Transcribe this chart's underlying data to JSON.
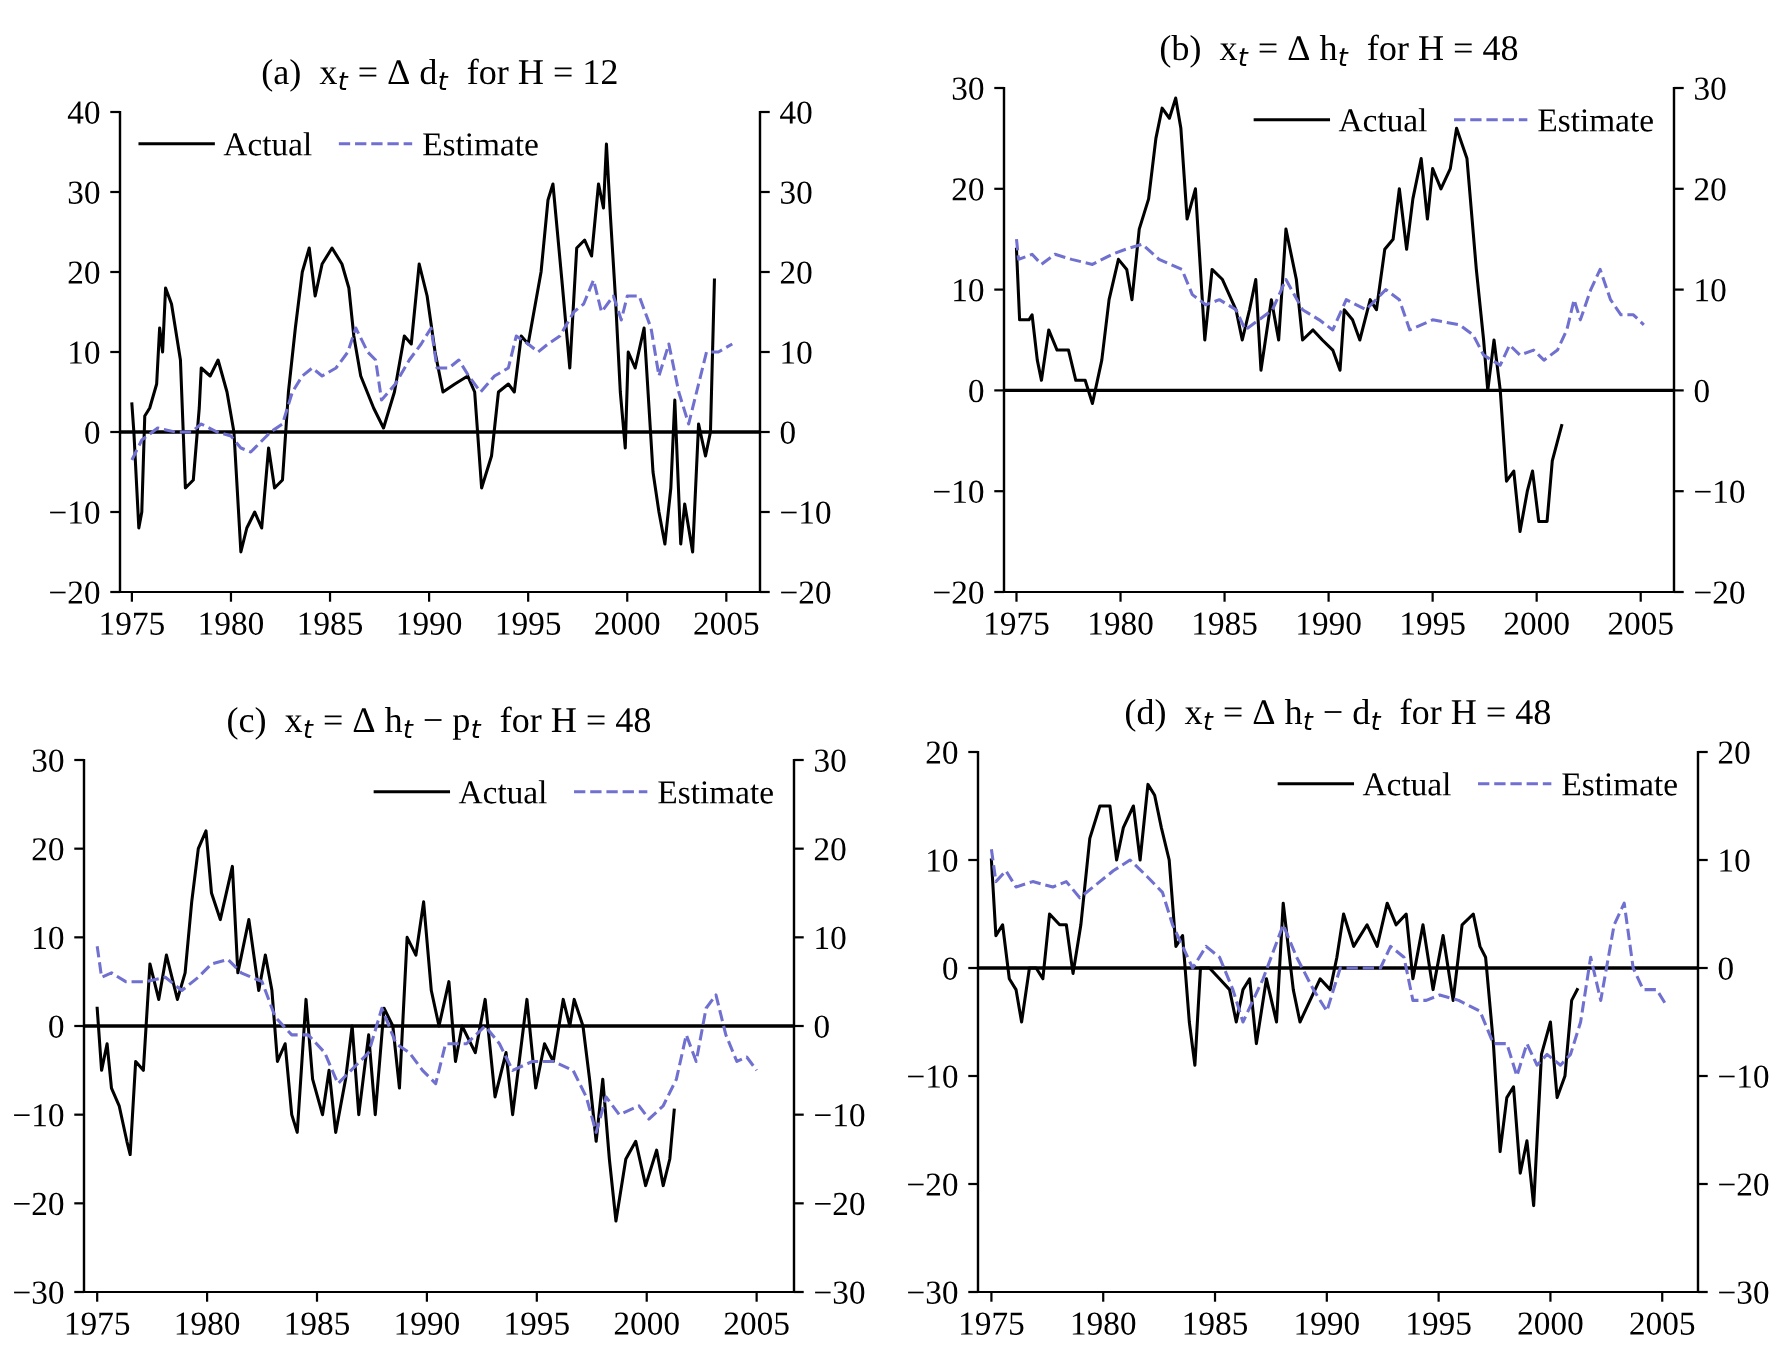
{
  "chart_data": [
    {
      "type": "line",
      "title": "(a)  x$_{t}$ = Δ d$_{t}$  for H = 12",
      "legend": "top left",
      "xlim": [
        1974.4,
        2006.7
      ],
      "xticks": [
        1975,
        1980,
        1985,
        1990,
        1995,
        2000,
        2005
      ],
      "ylim": [
        -20,
        40
      ],
      "yticks": [
        -20,
        -10,
        0,
        10,
        20,
        30,
        40
      ],
      "y2lim": [
        -20,
        40
      ],
      "y2ticks": [
        -20,
        -10,
        0,
        10,
        20,
        30,
        40
      ],
      "ref_lines": [
        {
          "axis": "y",
          "value": 0,
          "color": "#000000"
        }
      ],
      "series": [
        {
          "name": "Actual",
          "color": "#000000",
          "line_style": "solid",
          "x": [
            1975.0,
            1975.1,
            1975.35,
            1975.5,
            1975.65,
            1975.9,
            1976.25,
            1976.4,
            1976.55,
            1976.7,
            1977.0,
            1977.45,
            1977.7,
            1978.1,
            1978.4,
            1978.5,
            1978.95,
            1979.35,
            1979.8,
            1980.15,
            1980.5,
            1980.8,
            1981.2,
            1981.55,
            1981.9,
            1982.2,
            1982.6,
            1982.9,
            1983.25,
            1983.6,
            1983.95,
            1984.25,
            1984.6,
            1985.1,
            1985.6,
            1985.95,
            1986.2,
            1986.55,
            1987.2,
            1987.7,
            1988.25,
            1988.75,
            1989.1,
            1989.5,
            1989.9,
            1990.3,
            1990.7,
            1991.3,
            1991.95,
            1992.3,
            1992.65,
            1993.15,
            1993.5,
            1994.0,
            1994.3,
            1994.65,
            1995.0,
            1995.65,
            1996.0,
            1996.25,
            1996.7,
            1997.1,
            1997.45,
            1997.85,
            1998.2,
            1998.55,
            1998.8,
            1998.95,
            1999.15,
            1999.4,
            1999.65,
            1999.9,
            2000.05,
            2000.4,
            2000.85,
            2001.3,
            2001.6,
            2001.9,
            2002.2,
            2002.4,
            2002.7,
            2002.9,
            2003.3,
            2003.6,
            2003.95,
            2004.2,
            2004.4
          ],
          "values": [
            3.5,
            0,
            -12,
            -10,
            2,
            3,
            6,
            13,
            10,
            18,
            16,
            9,
            -7,
            -6,
            3,
            8,
            7,
            9,
            5,
            0,
            -15,
            -12,
            -10,
            -12,
            -2,
            -7,
            -6,
            5,
            13,
            20,
            23,
            17,
            21,
            23,
            21,
            18,
            12,
            7,
            3,
            0.5,
            5,
            12,
            11,
            21,
            17,
            10,
            5,
            6,
            7,
            5,
            -7,
            -3,
            5,
            6,
            5,
            12,
            11,
            20,
            29,
            31,
            19,
            8,
            23,
            24,
            22,
            31,
            28,
            36,
            27,
            17,
            5,
            -2,
            10,
            8,
            13,
            -5,
            -10,
            -14,
            -7,
            4,
            -14,
            -9,
            -15,
            1,
            -3,
            0,
            19
          ]
        },
        {
          "name": "Estimate",
          "color": "#7070d0",
          "line_style": "dashed",
          "x": [
            1975.0,
            1975.5,
            1976.3,
            1977.2,
            1978.0,
            1978.5,
            1979.3,
            1980.0,
            1980.5,
            1981.0,
            1982.0,
            1982.6,
            1983.1,
            1983.6,
            1984.1,
            1984.6,
            1985.3,
            1985.9,
            1986.3,
            1986.9,
            1987.3,
            1987.6,
            1988.3,
            1989.0,
            1989.6,
            1990.1,
            1990.4,
            1991.0,
            1991.5,
            1992.0,
            1992.6,
            1993.3,
            1994.0,
            1994.4,
            1995.0,
            1995.5,
            1996.0,
            1996.6,
            1997.3,
            1997.8,
            1998.3,
            1998.7,
            1999.3,
            1999.7,
            2000.0,
            2000.6,
            2001.2,
            2001.6,
            2002.1,
            2002.6,
            2003.1,
            2003.6,
            2004.0,
            2004.6,
            2005.3
          ],
          "values": [
            -3.5,
            -1,
            0.5,
            0,
            0,
            1,
            0,
            -0.5,
            -2,
            -2.5,
            0,
            1,
            5,
            7,
            8,
            7,
            8,
            10,
            13,
            10,
            9,
            4,
            6,
            9,
            11,
            13,
            8,
            8,
            9,
            7,
            5,
            7,
            8,
            12,
            11,
            10,
            11,
            12,
            15,
            16,
            19,
            15,
            17,
            14,
            17,
            17,
            13,
            7,
            11,
            5,
            1,
            6,
            10,
            10,
            11
          ]
        }
      ]
    },
    {
      "type": "line",
      "title": "(b)  x$_{t}$ = Δ h$_{t}$  for H = 48",
      "legend": "top right",
      "xlim": [
        1974.4,
        2006.6
      ],
      "xticks": [
        1975,
        1980,
        1985,
        1990,
        1995,
        2000,
        2005
      ],
      "ylim": [
        -20,
        30
      ],
      "yticks": [
        -20,
        -10,
        0,
        10,
        20,
        30
      ],
      "y2lim": [
        -20,
        30
      ],
      "y2ticks": [
        -20,
        -10,
        0,
        10,
        20,
        30
      ],
      "ref_lines": [
        {
          "axis": "y",
          "value": 0,
          "color": "#000000"
        }
      ],
      "series": [
        {
          "name": "Actual",
          "color": "#000000",
          "line_style": "solid",
          "x": [
            1975.0,
            1975.15,
            1975.6,
            1975.75,
            1976.0,
            1976.2,
            1976.55,
            1976.95,
            1977.5,
            1977.85,
            1978.3,
            1978.65,
            1979.1,
            1979.45,
            1979.9,
            1980.3,
            1980.55,
            1980.9,
            1981.35,
            1981.7,
            1982.0,
            1982.35,
            1982.65,
            1982.9,
            1983.2,
            1983.6,
            1984.05,
            1984.4,
            1984.9,
            1985.55,
            1985.85,
            1986.2,
            1986.5,
            1986.75,
            1987.25,
            1987.6,
            1987.95,
            1988.45,
            1988.75,
            1989.25,
            1989.7,
            1990.2,
            1990.55,
            1990.75,
            1991.15,
            1991.5,
            1992.0,
            1992.3,
            1992.7,
            1993.1,
            1993.4,
            1993.75,
            1994.05,
            1994.45,
            1994.75,
            1995.0,
            1995.4,
            1995.85,
            1996.15,
            1996.65,
            1997.1,
            1997.45,
            1997.65,
            1997.95,
            1998.25,
            1998.55,
            1998.9,
            1999.2,
            1999.55,
            1999.8,
            2000.1,
            2000.5,
            2000.75,
            2001.2
          ],
          "values": [
            14,
            7,
            7,
            7.5,
            3,
            1,
            6,
            4,
            4,
            1,
            1,
            -1.3,
            3,
            9,
            13,
            12,
            9,
            16,
            19,
            25,
            28,
            27,
            29,
            26,
            17,
            20,
            5,
            12,
            11,
            8,
            5,
            8,
            11,
            2,
            9,
            5,
            16,
            11,
            5,
            6,
            5,
            4,
            2,
            8,
            7,
            5,
            9,
            8,
            14,
            15,
            20,
            14,
            19,
            23,
            17,
            22,
            20,
            22,
            26,
            23,
            12,
            5,
            0,
            5,
            0,
            -9,
            -8,
            -14,
            -10,
            -8,
            -13,
            -13,
            -7,
            -3.5
          ]
        },
        {
          "name": "Estimate",
          "color": "#7070d0",
          "line_style": "dashed",
          "x": [
            1975.0,
            1975.1,
            1975.75,
            1976.2,
            1976.85,
            1977.65,
            1978.65,
            1979.6,
            1980.25,
            1981.05,
            1981.85,
            1982.95,
            1983.45,
            1984.1,
            1984.75,
            1985.55,
            1986.0,
            1986.65,
            1987.3,
            1987.95,
            1988.75,
            1989.55,
            1990.2,
            1990.85,
            1991.8,
            1992.75,
            1993.4,
            1993.9,
            1995.0,
            1996.3,
            1996.95,
            1997.45,
            1998.25,
            1998.7,
            1999.2,
            1999.85,
            2000.35,
            2001.0,
            2001.45,
            2001.8,
            2002.1,
            2002.6,
            2003.05,
            2003.55,
            2004.05,
            2004.65,
            2005.15
          ],
          "values": [
            15,
            13,
            13.5,
            12.5,
            13.5,
            13,
            12.5,
            13.5,
            14,
            14.5,
            13,
            12,
            9.5,
            8.5,
            9,
            8,
            6,
            7,
            8,
            11,
            8,
            7,
            6,
            9,
            8,
            10,
            9,
            6,
            7,
            6.5,
            5.5,
            3.5,
            2.5,
            4.5,
            3.5,
            4,
            3,
            4,
            6,
            9,
            7,
            10,
            12,
            9,
            7.5,
            7.5,
            6.5
          ]
        }
      ]
    },
    {
      "type": "line",
      "title": "(c)  x$_{t}$ = Δ h$_{t}$ − p$_{t}$  for H = 48",
      "legend": "top right",
      "xlim": [
        1974.4,
        2006.7
      ],
      "xticks": [
        1975,
        1980,
        1985,
        1990,
        1995,
        2000,
        2005
      ],
      "ylim": [
        -30,
        30
      ],
      "yticks": [
        -30,
        -20,
        -10,
        0,
        10,
        20,
        30
      ],
      "y2lim": [
        -30,
        30
      ],
      "y2ticks": [
        -30,
        -20,
        -10,
        0,
        10,
        20,
        30
      ],
      "ref_lines": [
        {
          "axis": "y",
          "value": 0,
          "color": "#000000"
        }
      ],
      "series": [
        {
          "name": "Actual",
          "color": "#000000",
          "line_style": "solid",
          "x": [
            1975.0,
            1975.2,
            1975.45,
            1975.65,
            1976.0,
            1976.35,
            1976.5,
            1976.75,
            1977.1,
            1977.4,
            1977.8,
            1978.15,
            1978.65,
            1979.0,
            1979.3,
            1979.6,
            1979.95,
            1980.2,
            1980.6,
            1981.15,
            1981.4,
            1981.9,
            1982.35,
            1982.65,
            1982.95,
            1983.2,
            1983.55,
            1983.85,
            1984.1,
            1984.5,
            1984.8,
            1985.25,
            1985.55,
            1985.85,
            1986.3,
            1986.6,
            1986.9,
            1987.35,
            1987.65,
            1988.05,
            1988.45,
            1988.75,
            1989.1,
            1989.5,
            1989.85,
            1990.2,
            1990.55,
            1991.0,
            1991.3,
            1991.6,
            1992.2,
            1992.65,
            1993.1,
            1993.6,
            1993.9,
            1994.55,
            1994.95,
            1995.35,
            1995.75,
            1996.2,
            1996.5,
            1996.7,
            1997.1,
            1997.4,
            1997.7,
            1998.0,
            1998.3,
            1998.6,
            1999.05,
            1999.5,
            1999.95,
            2000.45,
            2000.75,
            2001.05,
            2001.25
          ],
          "values": [
            2,
            -5,
            -2,
            -7,
            -9,
            -13,
            -14.5,
            -4,
            -5,
            7,
            3,
            8,
            3,
            6,
            14,
            20,
            22,
            15,
            12,
            18,
            6,
            12,
            4,
            8,
            4,
            -4,
            -2,
            -10,
            -12,
            3,
            -6,
            -10,
            -5,
            -12,
            -6,
            0,
            -10,
            -1,
            -10,
            2,
            0,
            -7,
            10,
            8,
            14,
            4,
            0,
            5,
            -4,
            0,
            -3,
            3,
            -8,
            -3,
            -10,
            3,
            -7,
            -2,
            -4,
            3,
            0,
            3,
            0,
            -6,
            -13,
            -6,
            -15,
            -22,
            -15,
            -13,
            -18,
            -14,
            -18,
            -15,
            -9.5
          ]
        },
        {
          "name": "Estimate",
          "color": "#7070d0",
          "line_style": "dashed",
          "x": [
            1975.0,
            1975.2,
            1975.65,
            1976.3,
            1977.2,
            1978.1,
            1978.85,
            1979.6,
            1980.2,
            1980.95,
            1981.55,
            1982.5,
            1983.1,
            1983.85,
            1984.6,
            1985.35,
            1985.95,
            1986.55,
            1987.35,
            1987.95,
            1988.6,
            1989.2,
            1989.8,
            1990.4,
            1990.85,
            1991.8,
            1992.65,
            1993.3,
            1993.9,
            1994.8,
            1995.75,
            1996.65,
            1997.25,
            1997.7,
            1998.15,
            1998.75,
            1999.65,
            2000.1,
            2000.75,
            2001.35,
            2001.8,
            2002.25,
            2002.7,
            2003.15,
            2003.6,
            2004.1,
            2004.55,
            2005.0
          ],
          "values": [
            9,
            5.5,
            6,
            5,
            5,
            5.5,
            4,
            5.5,
            7,
            7.5,
            6,
            5,
            1,
            -1,
            -1,
            -3,
            -6.5,
            -5,
            -3,
            2,
            -2,
            -3,
            -5,
            -6.5,
            -2,
            -2,
            0,
            -2,
            -5,
            -4,
            -4,
            -5,
            -8,
            -12,
            -8,
            -10,
            -9,
            -10.5,
            -9,
            -6,
            -1,
            -4,
            2,
            3.5,
            -1,
            -4,
            -3.5,
            -5
          ]
        }
      ]
    },
    {
      "type": "line",
      "title": "(d)  x$_{t}$ = Δ h$_{t}$ − d$_{t}$  for H = 48",
      "legend": "top right",
      "xlim": [
        1974.4,
        2006.6
      ],
      "xticks": [
        1975,
        1980,
        1985,
        1990,
        1995,
        2000,
        2005
      ],
      "ylim": [
        -30,
        20
      ],
      "yticks": [
        -30,
        -20,
        -10,
        0,
        10,
        20
      ],
      "y2lim": [
        -30,
        20
      ],
      "y2ticks": [
        -30,
        -20,
        -10,
        0,
        10,
        20
      ],
      "ref_lines": [
        {
          "axis": "y",
          "value": 0,
          "color": "#000000"
        }
      ],
      "series": [
        {
          "name": "Actual",
          "color": "#000000",
          "line_style": "solid",
          "x": [
            1975.0,
            1975.2,
            1975.5,
            1975.8,
            1976.1,
            1976.35,
            1976.7,
            1977.0,
            1977.3,
            1977.6,
            1978.05,
            1978.35,
            1978.65,
            1979.0,
            1979.4,
            1979.85,
            1980.3,
            1980.6,
            1980.9,
            1981.35,
            1981.65,
            1982.0,
            1982.3,
            1982.6,
            1982.95,
            1983.25,
            1983.55,
            1983.85,
            1984.1,
            1984.35,
            1984.75,
            1985.2,
            1985.65,
            1985.95,
            1986.25,
            1986.55,
            1986.85,
            1987.3,
            1987.75,
            1988.05,
            1988.5,
            1988.8,
            1989.25,
            1989.7,
            1990.15,
            1990.45,
            1990.75,
            1991.2,
            1991.8,
            1992.25,
            1992.7,
            1993.1,
            1993.55,
            1993.85,
            1994.3,
            1994.75,
            1995.2,
            1995.65,
            1996.05,
            1996.55,
            1996.85,
            1997.1,
            1997.45,
            1997.75,
            1998.05,
            1998.35,
            1998.65,
            1998.95,
            1999.25,
            1999.6,
            2000.0,
            2000.3,
            2000.65,
            2000.95,
            2001.2
          ],
          "values": [
            10,
            3,
            4,
            -1,
            -2,
            -5,
            0,
            0,
            -1,
            5,
            4,
            4,
            -0.5,
            4,
            12,
            15,
            15,
            10,
            13,
            15,
            10,
            17,
            16,
            13,
            10,
            2,
            3,
            -5,
            -9,
            0,
            0,
            -1,
            -2,
            -5,
            -2,
            -1,
            -7,
            -1,
            -5,
            6,
            -2,
            -5,
            -3,
            -1,
            -2,
            1,
            5,
            2,
            4,
            2,
            6,
            4,
            5,
            -1,
            4,
            -2,
            3,
            -3,
            4,
            5,
            2,
            1,
            -7,
            -17,
            -12,
            -11,
            -19,
            -16,
            -22,
            -8,
            -5,
            -12,
            -10,
            -3,
            -2
          ]
        },
        {
          "name": "Estimate",
          "color": "#7070d0",
          "line_style": "dashed",
          "x": [
            1975.0,
            1975.2,
            1975.65,
            1976.1,
            1976.85,
            1977.75,
            1978.35,
            1978.95,
            1979.85,
            1980.45,
            1981.2,
            1981.95,
            1982.65,
            1983.1,
            1983.55,
            1984.0,
            1984.6,
            1985.2,
            1985.8,
            1986.25,
            1986.7,
            1987.15,
            1988.05,
            1988.65,
            1989.4,
            1990.0,
            1990.6,
            1991.5,
            1992.4,
            1992.85,
            1993.45,
            1993.85,
            1994.45,
            1995.05,
            1995.9,
            1996.85,
            1997.45,
            1998.05,
            1998.5,
            1998.95,
            1999.4,
            1999.85,
            2000.45,
            2000.9,
            2001.35,
            2001.8,
            2002.25,
            2002.85,
            2003.3,
            2003.7,
            2004.15,
            2004.75,
            2005.2
          ],
          "values": [
            11,
            8,
            9,
            7.5,
            8,
            7.5,
            8,
            6.5,
            8,
            9,
            10,
            8.5,
            7,
            4,
            2,
            0,
            2,
            1,
            -2,
            -5,
            -3,
            -1,
            4,
            1,
            -2,
            -4,
            0,
            0,
            0,
            2,
            1,
            -3,
            -3,
            -2.5,
            -3,
            -4,
            -7,
            -7,
            -10,
            -7,
            -9,
            -8,
            -9,
            -8,
            -5,
            1,
            -3,
            4,
            6,
            0,
            -2,
            -2,
            -3.5
          ]
        }
      ]
    }
  ]
}
